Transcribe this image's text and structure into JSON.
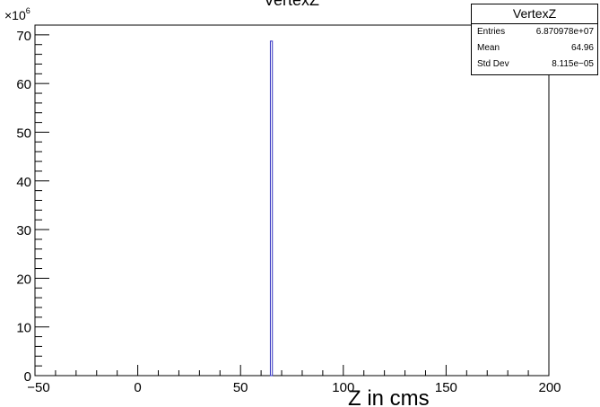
{
  "chart_data": {
    "type": "bar",
    "title": "VertexZ",
    "xlabel": "Z in cms",
    "ylabel": "",
    "y_multiplier": "×10",
    "y_exponent": "6",
    "xlim": [
      -50,
      200
    ],
    "ylim": [
      0,
      72
    ],
    "x_ticks": [
      -50,
      0,
      50,
      100,
      150,
      200
    ],
    "x_tick_labels": [
      "−50",
      "0",
      "50",
      "100",
      "150",
      "200"
    ],
    "y_ticks": [
      0,
      10,
      20,
      30,
      40,
      50,
      60,
      70
    ],
    "y_tick_labels": [
      "0",
      "10",
      "20",
      "30",
      "40",
      "50",
      "60",
      "70"
    ],
    "bins": [
      {
        "x_low": 64.5,
        "x_high": 65.5,
        "value": 68.71
      }
    ],
    "bar_color": "#3030c0",
    "grid": false
  },
  "stats": {
    "title": "VertexZ",
    "rows": [
      {
        "label": "Entries",
        "value": "6.870978e+07"
      },
      {
        "label": "Mean",
        "value": "64.96"
      },
      {
        "label": "Std Dev",
        "value": "8.115e−05"
      }
    ]
  }
}
